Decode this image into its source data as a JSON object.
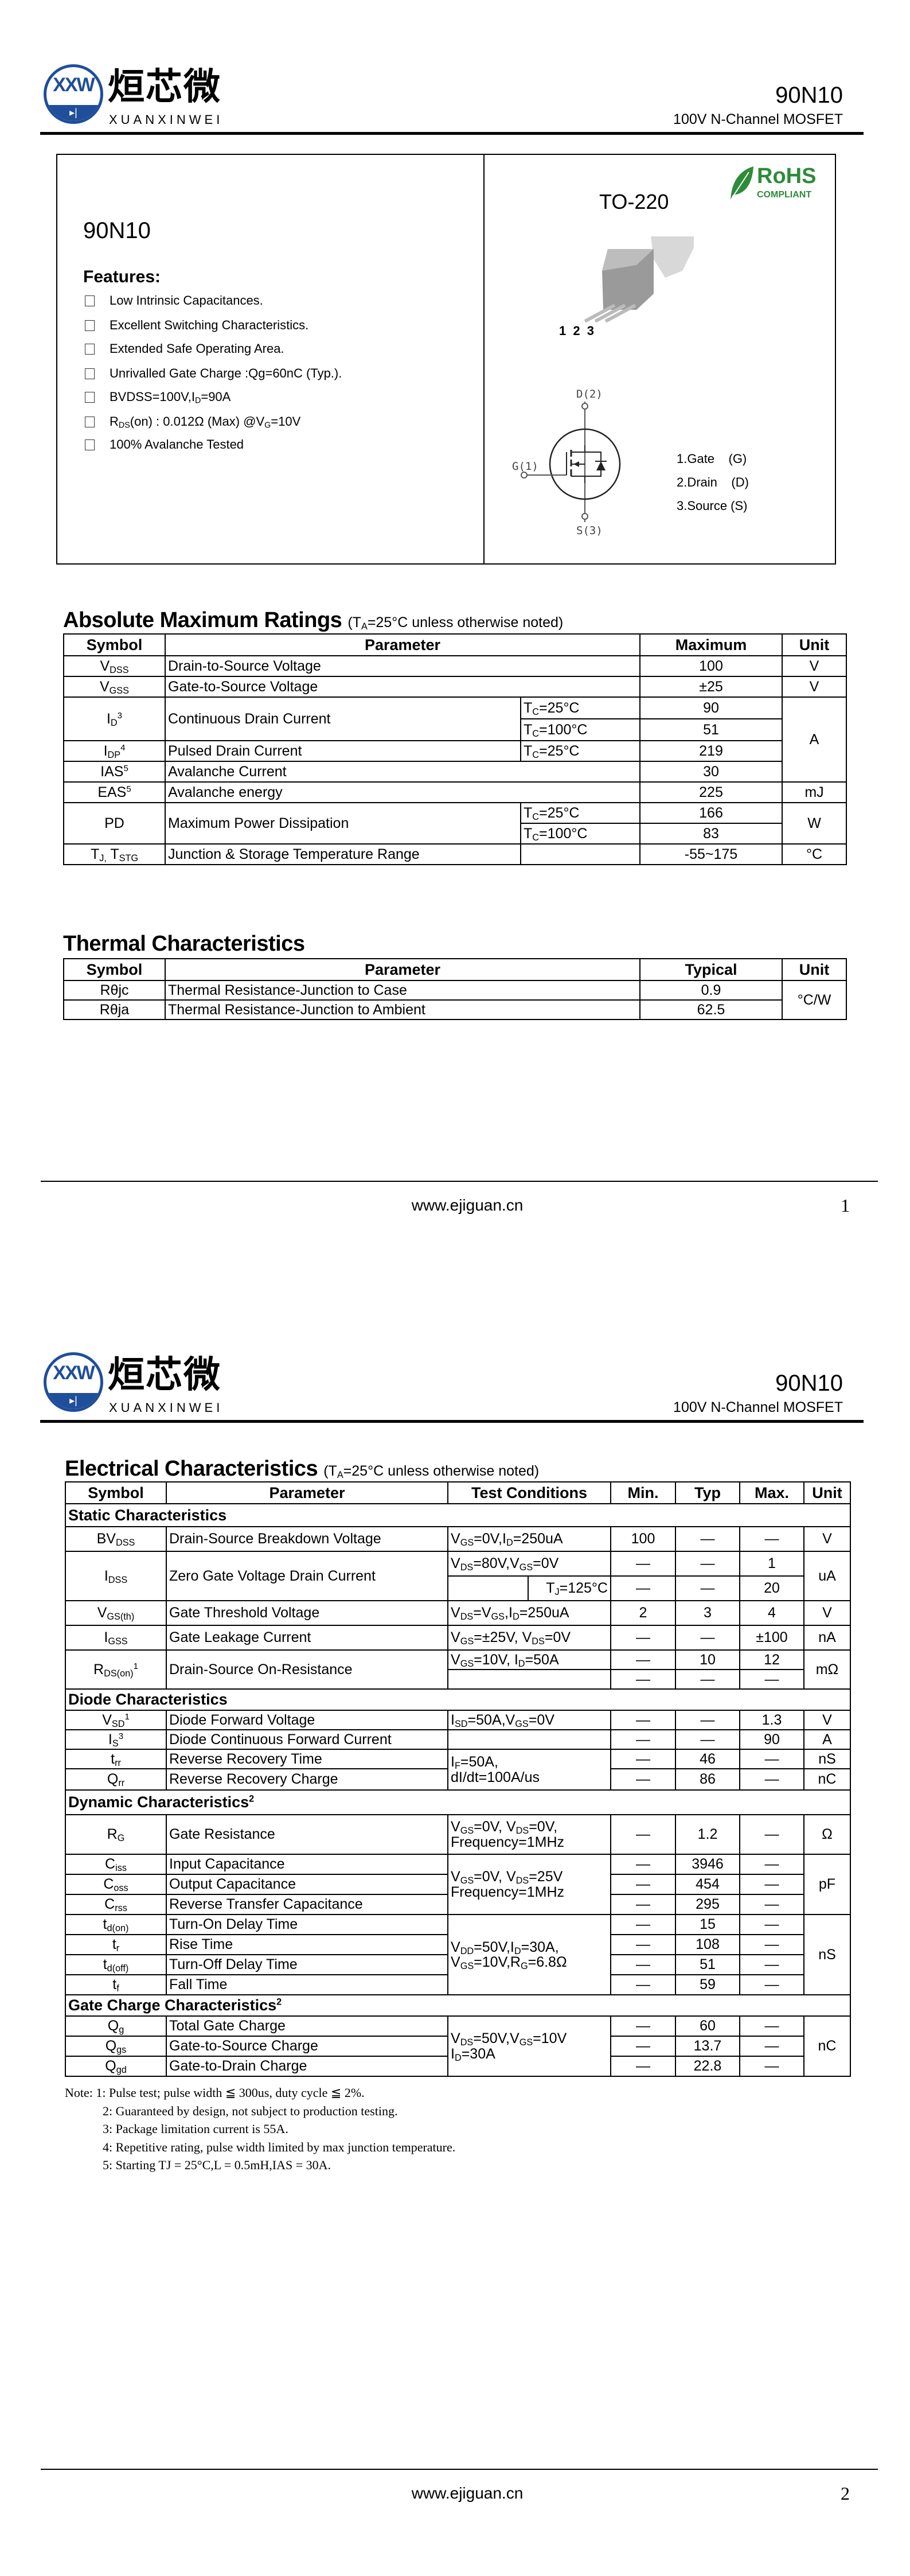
{
  "header": {
    "logo_mark": "XXW",
    "logo_cn": "烜芯微",
    "logo_en": "XUANXINWEI",
    "part": "90N10",
    "subtitle": "100V N-Channel MOSFET"
  },
  "overview": {
    "part": "90N10",
    "features_title": "Features:",
    "features": [
      "Low Intrinsic Capacitances.",
      "Excellent Switching Characteristics.",
      "Extended Safe Operating Area.",
      "Unrivalled Gate Charge :Qg=60nC (Typ.).",
      "BVDSS=100V,I_{D}=90A",
      "R_{DS}(on) : 0.012Ω (Max) @V_{G}=10V",
      "100% Avalanche Tested"
    ],
    "package": "TO-220",
    "rohs": {
      "title": "RoHS",
      "sub": "COMPLIANT",
      "color": "#2e8b3a"
    },
    "pin_numbers": "1 2 3",
    "schematic": {
      "d": "D(2)",
      "g": "G(1)",
      "s": "S(3)"
    },
    "pins": [
      "1.Gate    (G)",
      "2.Drain    (D)",
      "3.Source (S)"
    ]
  },
  "abs_max": {
    "title": "Absolute Maximum Ratings",
    "condition": "(T_{A}=25°C unless otherwise noted)",
    "headers": [
      "Symbol",
      "Parameter",
      "Maximum",
      "Unit"
    ],
    "rows": [
      {
        "sym": "V_{DSS}",
        "param": "Drain-to-Source Voltage",
        "max": "100",
        "unit": "V"
      },
      {
        "sym": "V_{GSS}",
        "param": "Gate-to-Source Voltage",
        "max": "±25",
        "unit": "V"
      },
      {
        "sym": "I_{D}^{3}",
        "param": "Continuous Drain Current",
        "cond": "T_{C}=25°C",
        "max": "90",
        "cond2": "T_{C}=100°C",
        "max2": "51",
        "unit": "A"
      },
      {
        "sym": "I_{DP}^{4}",
        "param": "Pulsed Drain Current",
        "cond": "T_{C}=25°C",
        "max": "219"
      },
      {
        "sym": "IAS^{5}",
        "param": "Avalanche Current",
        "max": "30"
      },
      {
        "sym": "EAS^{5}",
        "param": "Avalanche energy",
        "max": "225",
        "unit": "mJ"
      },
      {
        "sym": "PD",
        "param": "Maximum Power Dissipation",
        "cond": "T_{C}=25°C",
        "max": "166",
        "cond2": "T_{C}=100°C",
        "max2": "83",
        "unit": "W"
      },
      {
        "sym": "T_{J,} T_{STG}",
        "param": "Junction & Storage Temperature Range",
        "max": "-55~175",
        "unit": "°C"
      }
    ]
  },
  "thermal": {
    "title": "Thermal Characteristics",
    "headers": [
      "Symbol",
      "Parameter",
      "Typical",
      "Unit"
    ],
    "rows": [
      {
        "sym": "Rθjc",
        "param": "Thermal Resistance-Junction to Case",
        "typ": "0.9"
      },
      {
        "sym": "Rθja",
        "param": "Thermal Resistance-Junction to Ambient",
        "typ": "62.5"
      }
    ],
    "unit": "°C/W"
  },
  "footer": {
    "url": "www.ejiguan.cn",
    "page1": "1",
    "page2": "2"
  },
  "elec": {
    "title": "Electrical Characteristics",
    "condition": "(T_{A}=25°C unless otherwise noted)",
    "headers": [
      "Symbol",
      "Parameter",
      "Test Conditions",
      "Min.",
      "Typ",
      "Max.",
      "Unit"
    ],
    "sections": {
      "static": "Static Characteristics",
      "diode": "Diode Characteristics",
      "dynamic": "Dynamic Characteristics^{2}",
      "gate": "Gate Charge Characteristics^{2}"
    },
    "rows": [
      {
        "sym": "BV_{DSS}",
        "param": "Drain-Source Breakdown Voltage",
        "cond": "V_{GS}=0V,I_{D}=250uA",
        "min": "100",
        "typ": "—",
        "max": "—",
        "unit": "V"
      },
      {
        "sym": "I_{DSS}",
        "param": "Zero Gate Voltage Drain Current",
        "cond": "V_{DS}=80V,V_{GS}=0V",
        "min": "—",
        "typ": "—",
        "max": "1",
        "cond2": "T_{J}=125°C",
        "min2": "—",
        "typ2": "—",
        "max2": "20",
        "unit": "uA"
      },
      {
        "sym": "V_{GS(th)}",
        "param": "Gate Threshold Voltage",
        "cond": "V_{DS}=V_{GS},I_{D}=250uA",
        "min": "2",
        "typ": "3",
        "max": "4",
        "unit": "V"
      },
      {
        "sym": "I_{GSS}",
        "param": "Gate Leakage Current",
        "cond": "V_{GS}=±25V, V_{DS}=0V",
        "min": "—",
        "typ": "—",
        "max": "±100",
        "unit": "nA"
      },
      {
        "sym": "R_{DS(on)}^{1}",
        "param": "Drain-Source On-Resistance",
        "cond": "V_{GS}=10V, I_{D}=50A",
        "min": "—",
        "typ": "10",
        "max": "12",
        "min2": "—",
        "typ2": "—",
        "max2": "—",
        "unit": "mΩ"
      },
      {
        "sym": "V_{SD}^{1}",
        "param": "Diode Forward Voltage",
        "cond": "I_{SD}=50A,V_{GS}=0V",
        "min": "—",
        "typ": "—",
        "max": "1.3",
        "unit": "V"
      },
      {
        "sym": "I_{S}^{3}",
        "param": "Diode Continuous Forward Current",
        "min": "—",
        "typ": "—",
        "max": "90",
        "unit": "A"
      },
      {
        "sym": "t_{rr}",
        "param": "Reverse Recovery Time",
        "cond": "I_{F}=50A,\ndI/dt=100A/us",
        "min": "—",
        "typ": "46",
        "max": "—",
        "unit": "nS"
      },
      {
        "sym": "Q_{rr}",
        "param": "Reverse Recovery Charge",
        "min": "—",
        "typ": "86",
        "max": "—",
        "unit": "nC"
      },
      {
        "sym": "R_{G}",
        "param": "Gate Resistance",
        "cond": "V_{GS}=0V, V_{DS}=0V,\nFrequency=1MHz",
        "min": "—",
        "typ": "1.2",
        "max": "—",
        "unit": "Ω"
      },
      {
        "sym": "C_{iss}",
        "param": "Input Capacitance",
        "cond": "V_{GS}=0V, V_{DS}=25V\nFrequency=1MHz",
        "min": "—",
        "typ": "3946",
        "max": "—",
        "unit": "pF"
      },
      {
        "sym": "C_{oss}",
        "param": "Output Capacitance",
        "min": "—",
        "typ": "454",
        "max": "—"
      },
      {
        "sym": "C_{rss}",
        "param": "Reverse Transfer Capacitance",
        "min": "—",
        "typ": "295",
        "max": "—"
      },
      {
        "sym": "t_{d(on)}",
        "param": "Turn-On Delay Time",
        "cond": "V_{DD}=50V,I_{D}=30A,\nV_{GS}=10V,R_{G}=6.8Ω",
        "min": "—",
        "typ": "15",
        "max": "—",
        "unit": "nS"
      },
      {
        "sym": "t_{r}",
        "param": "Rise Time",
        "min": "—",
        "typ": "108",
        "max": "—"
      },
      {
        "sym": "t_{d(off)}",
        "param": "Turn-Off Delay Time",
        "min": "—",
        "typ": "51",
        "max": "—"
      },
      {
        "sym": "t_{f}",
        "param": "Fall Time",
        "min": "—",
        "typ": "59",
        "max": "—"
      },
      {
        "sym": "Q_{g}",
        "param": "Total Gate Charge",
        "cond": "V_{DS}=50V,V_{GS}=10V\nI_{D}=30A",
        "min": "—",
        "typ": "60",
        "max": "—",
        "unit": "nC"
      },
      {
        "sym": "Q_{gs}",
        "param": "Gate-to-Source Charge",
        "min": "—",
        "typ": "13.7",
        "max": "—"
      },
      {
        "sym": "Q_{gd}",
        "param": "Gate-to-Drain Charge",
        "min": "—",
        "typ": "22.8",
        "max": "—"
      }
    ]
  },
  "notes": [
    "Note: 1: Pulse test; pulse width ≦ 300us, duty cycle ≦ 2%.",
    "2: Guaranteed by design, not subject to production testing.",
    "3: Package limitation current is 55A.",
    "4: Repetitive rating, pulse width limited by max junction temperature.",
    "5: Starting TJ = 25°C,L = 0.5mH,IAS = 30A."
  ]
}
